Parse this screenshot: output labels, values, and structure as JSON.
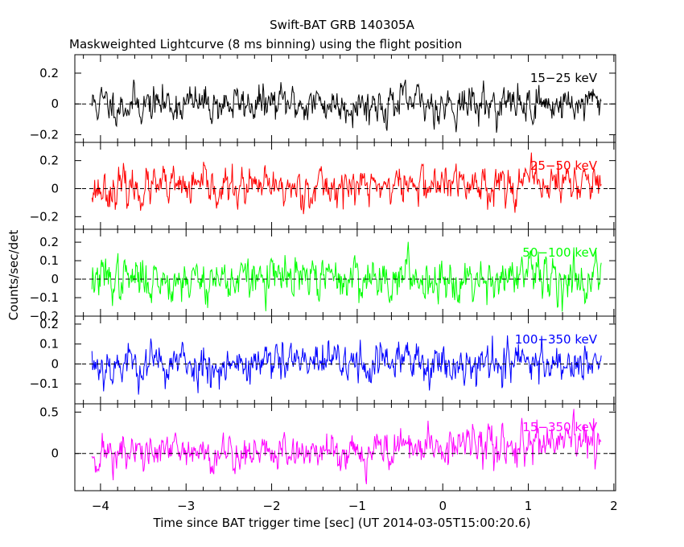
{
  "chart_data": {
    "type": "line",
    "title": "Swift-BAT GRB 140305A",
    "subtitle": "Maskweighted Lightcurve (8 ms binning) using the flight position",
    "xlabel": "Time since BAT trigger time [sec] (UT 2014-03-05T15:00:20.6)",
    "ylabel": "Counts/sec/det",
    "xlim": [
      -4.3,
      2.02
    ],
    "x_ticks": [
      -4,
      -3,
      -2,
      -1,
      0,
      1,
      2
    ],
    "x_tick_labels": [
      "−4",
      "−3",
      "−2",
      "−1",
      "0",
      "1",
      "2"
    ],
    "time_range": [
      -4.1,
      1.86
    ],
    "bin_width_sec": 0.008,
    "panels": [
      {
        "name": "15-25 keV",
        "label": "15−25 keV",
        "color": "#000000",
        "ylim": [
          -0.25,
          0.32
        ],
        "yticks": [
          -0.2,
          0,
          0.2
        ],
        "ytick_labels": [
          "−0.2",
          "0",
          "0.2"
        ],
        "noise_sigma": 0.062,
        "mean_trend": [
          0,
          0,
          0,
          0
        ],
        "seed": 11
      },
      {
        "name": "25-50 keV",
        "label": "25−50 keV",
        "color": "#ff0000",
        "ylim": [
          -0.29,
          0.33
        ],
        "yticks": [
          -0.2,
          0,
          0.2
        ],
        "ytick_labels": [
          "−0.2",
          "0",
          "0.2"
        ],
        "noise_sigma": 0.07,
        "mean_trend": [
          0,
          0,
          0.03,
          0.05
        ],
        "seed": 23
      },
      {
        "name": "50-100 keV",
        "label": "50−100 keV",
        "color": "#00ff00",
        "ylim": [
          -0.2,
          0.27
        ],
        "yticks": [
          -0.2,
          -0.1,
          0,
          0.1,
          0.2
        ],
        "ytick_labels": [
          "−0.2",
          "−0.1",
          "0",
          "0.1",
          "0.2"
        ],
        "noise_sigma": 0.06,
        "mean_trend": [
          0,
          0,
          0.01,
          0.01
        ],
        "seed": 37
      },
      {
        "name": "100-350 keV",
        "label": "100−350 keV",
        "color": "#0000ff",
        "ylim": [
          -0.2,
          0.24
        ],
        "yticks": [
          -0.1,
          0,
          0.1,
          0.2
        ],
        "ytick_labels": [
          "−0.1",
          "0",
          "0.1",
          "0.2"
        ],
        "noise_sigma": 0.055,
        "mean_trend": [
          0,
          0,
          0.01,
          0.01
        ],
        "seed": 53
      },
      {
        "name": "15-350 keV",
        "label": "15−350 keV",
        "color": "#ff00ff",
        "ylim": [
          -0.45,
          0.6
        ],
        "yticks": [
          0,
          0.5
        ],
        "ytick_labels": [
          "0",
          "0.5"
        ],
        "noise_sigma": 0.12,
        "mean_trend": [
          0,
          0,
          0.08,
          0.12
        ],
        "seed": 71
      }
    ]
  }
}
